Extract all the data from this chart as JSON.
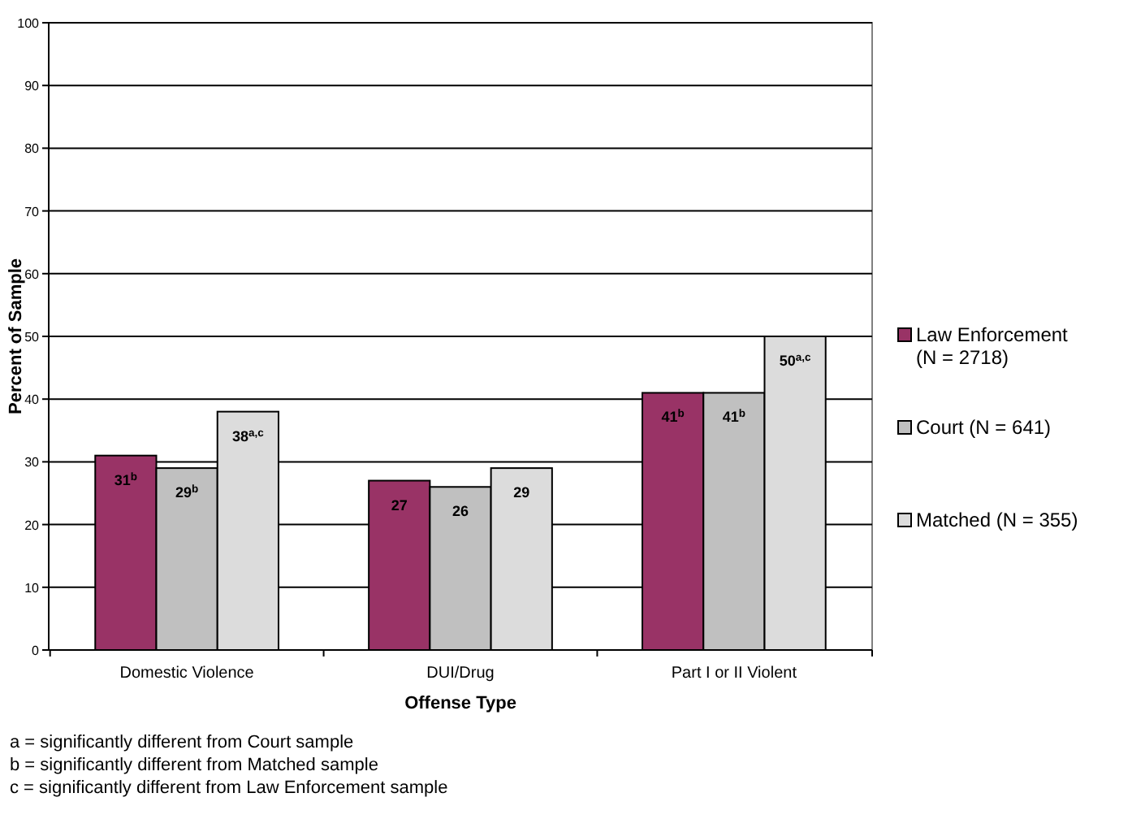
{
  "chart_data": {
    "type": "bar",
    "xlabel": "Offense Type",
    "ylabel": "Percent of Sample",
    "categories": [
      "Domestic Violence",
      "DUI/Drug",
      "Part I or II Violent"
    ],
    "series": [
      {
        "name": "Law Enforcement (N = 2718)",
        "color": "#993366",
        "values": [
          31,
          27,
          41
        ],
        "value_labels": [
          "31$^{b}$",
          "27",
          "41$^{b}$"
        ]
      },
      {
        "name": "Court (N = 641)",
        "color": "#c0c0c0",
        "values": [
          29,
          26,
          41
        ],
        "value_labels": [
          "29$^{b}$",
          "26",
          "41$^{b}$"
        ]
      },
      {
        "name": "Matched (N = 355)",
        "color": "#dcdcdc",
        "values": [
          38,
          29,
          50
        ],
        "value_labels": [
          "38$^{a,c}$",
          "29",
          "50$^{a,c}$"
        ]
      }
    ],
    "ylim": [
      0,
      100
    ],
    "yticks": [
      0,
      10,
      20,
      30,
      40,
      50,
      60,
      70,
      80,
      90,
      100
    ],
    "grid": "y",
    "legend": "right",
    "annotations": [
      "a = significantly different from Court sample",
      "b = significantly different from Matched sample",
      "c = significantly different from Law Enforcement sample"
    ]
  }
}
